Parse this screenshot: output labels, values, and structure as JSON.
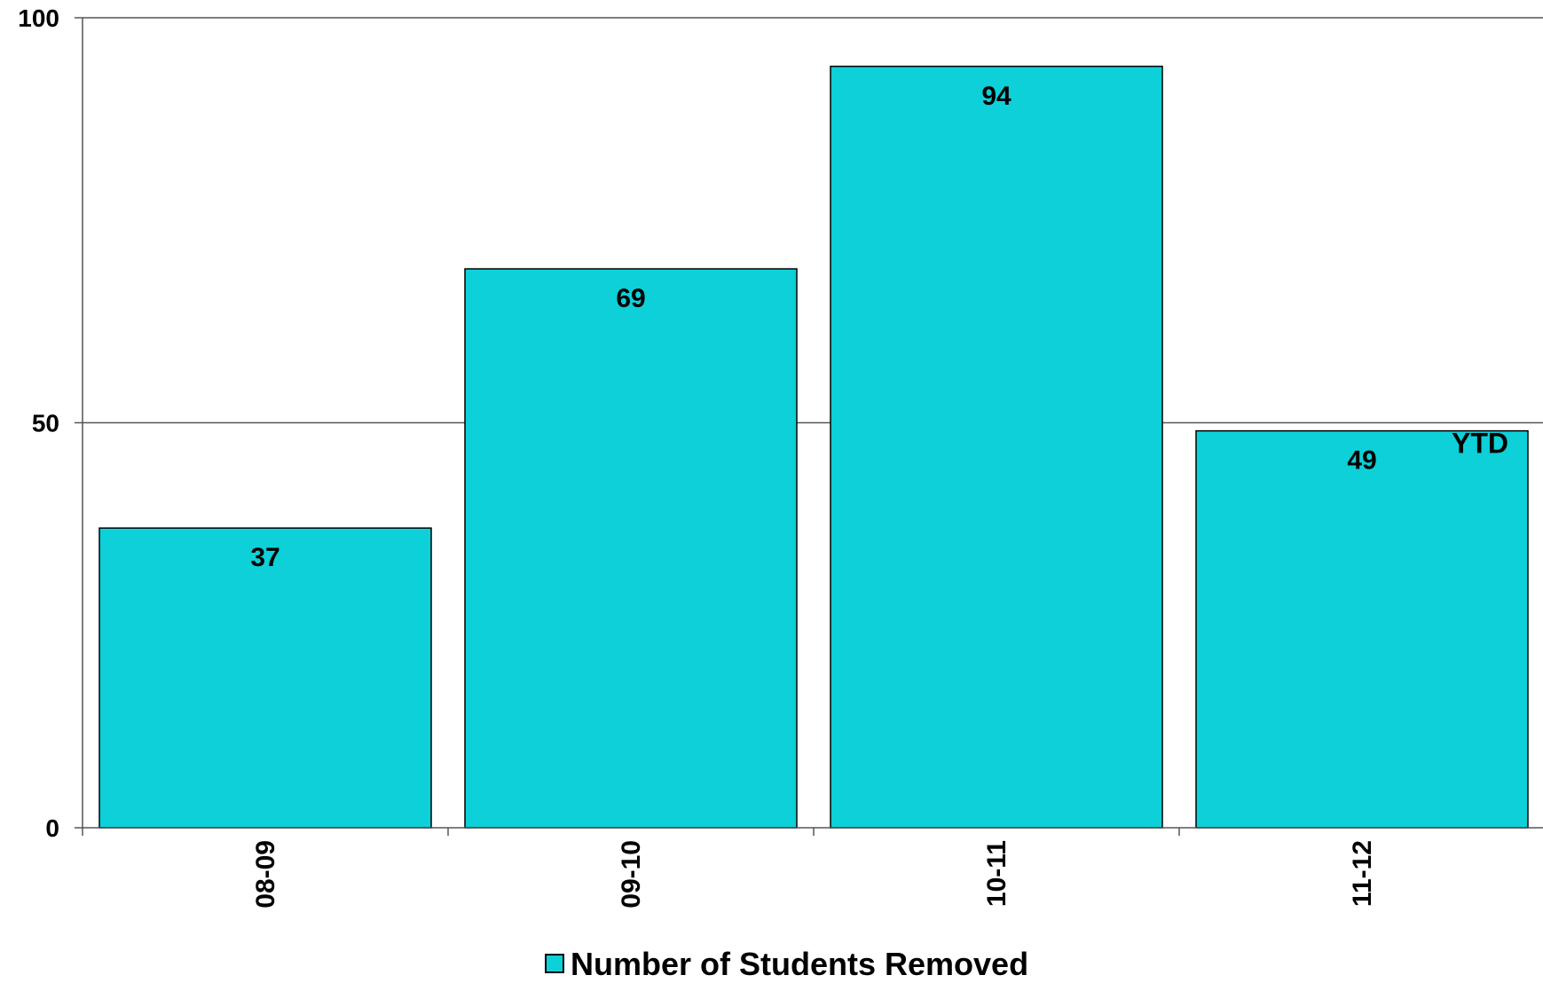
{
  "chart_data": {
    "type": "bar",
    "title": "",
    "xlabel": "",
    "ylabel": "",
    "categories": [
      "08-09",
      "09-10",
      "10-11",
      "11-12"
    ],
    "series": [
      {
        "name": "Number of Students Removed",
        "values": [
          37,
          69,
          94,
          49
        ],
        "data_labels": [
          "37",
          "69",
          "94",
          "49"
        ],
        "color": "#0dd0d8"
      }
    ],
    "ylim": [
      0,
      100
    ],
    "y_ticks": [
      0,
      50,
      100
    ],
    "y_tick_labels": [
      "0",
      "50",
      "100"
    ],
    "grid": true,
    "legend_position": "bottom",
    "annotations": [
      {
        "text": "YTD",
        "category": "11-12"
      }
    ]
  },
  "colors": {
    "bar": "#0dd0d8",
    "bar_outline": "#000000",
    "axis": "#555555",
    "gridline": "#555555"
  }
}
